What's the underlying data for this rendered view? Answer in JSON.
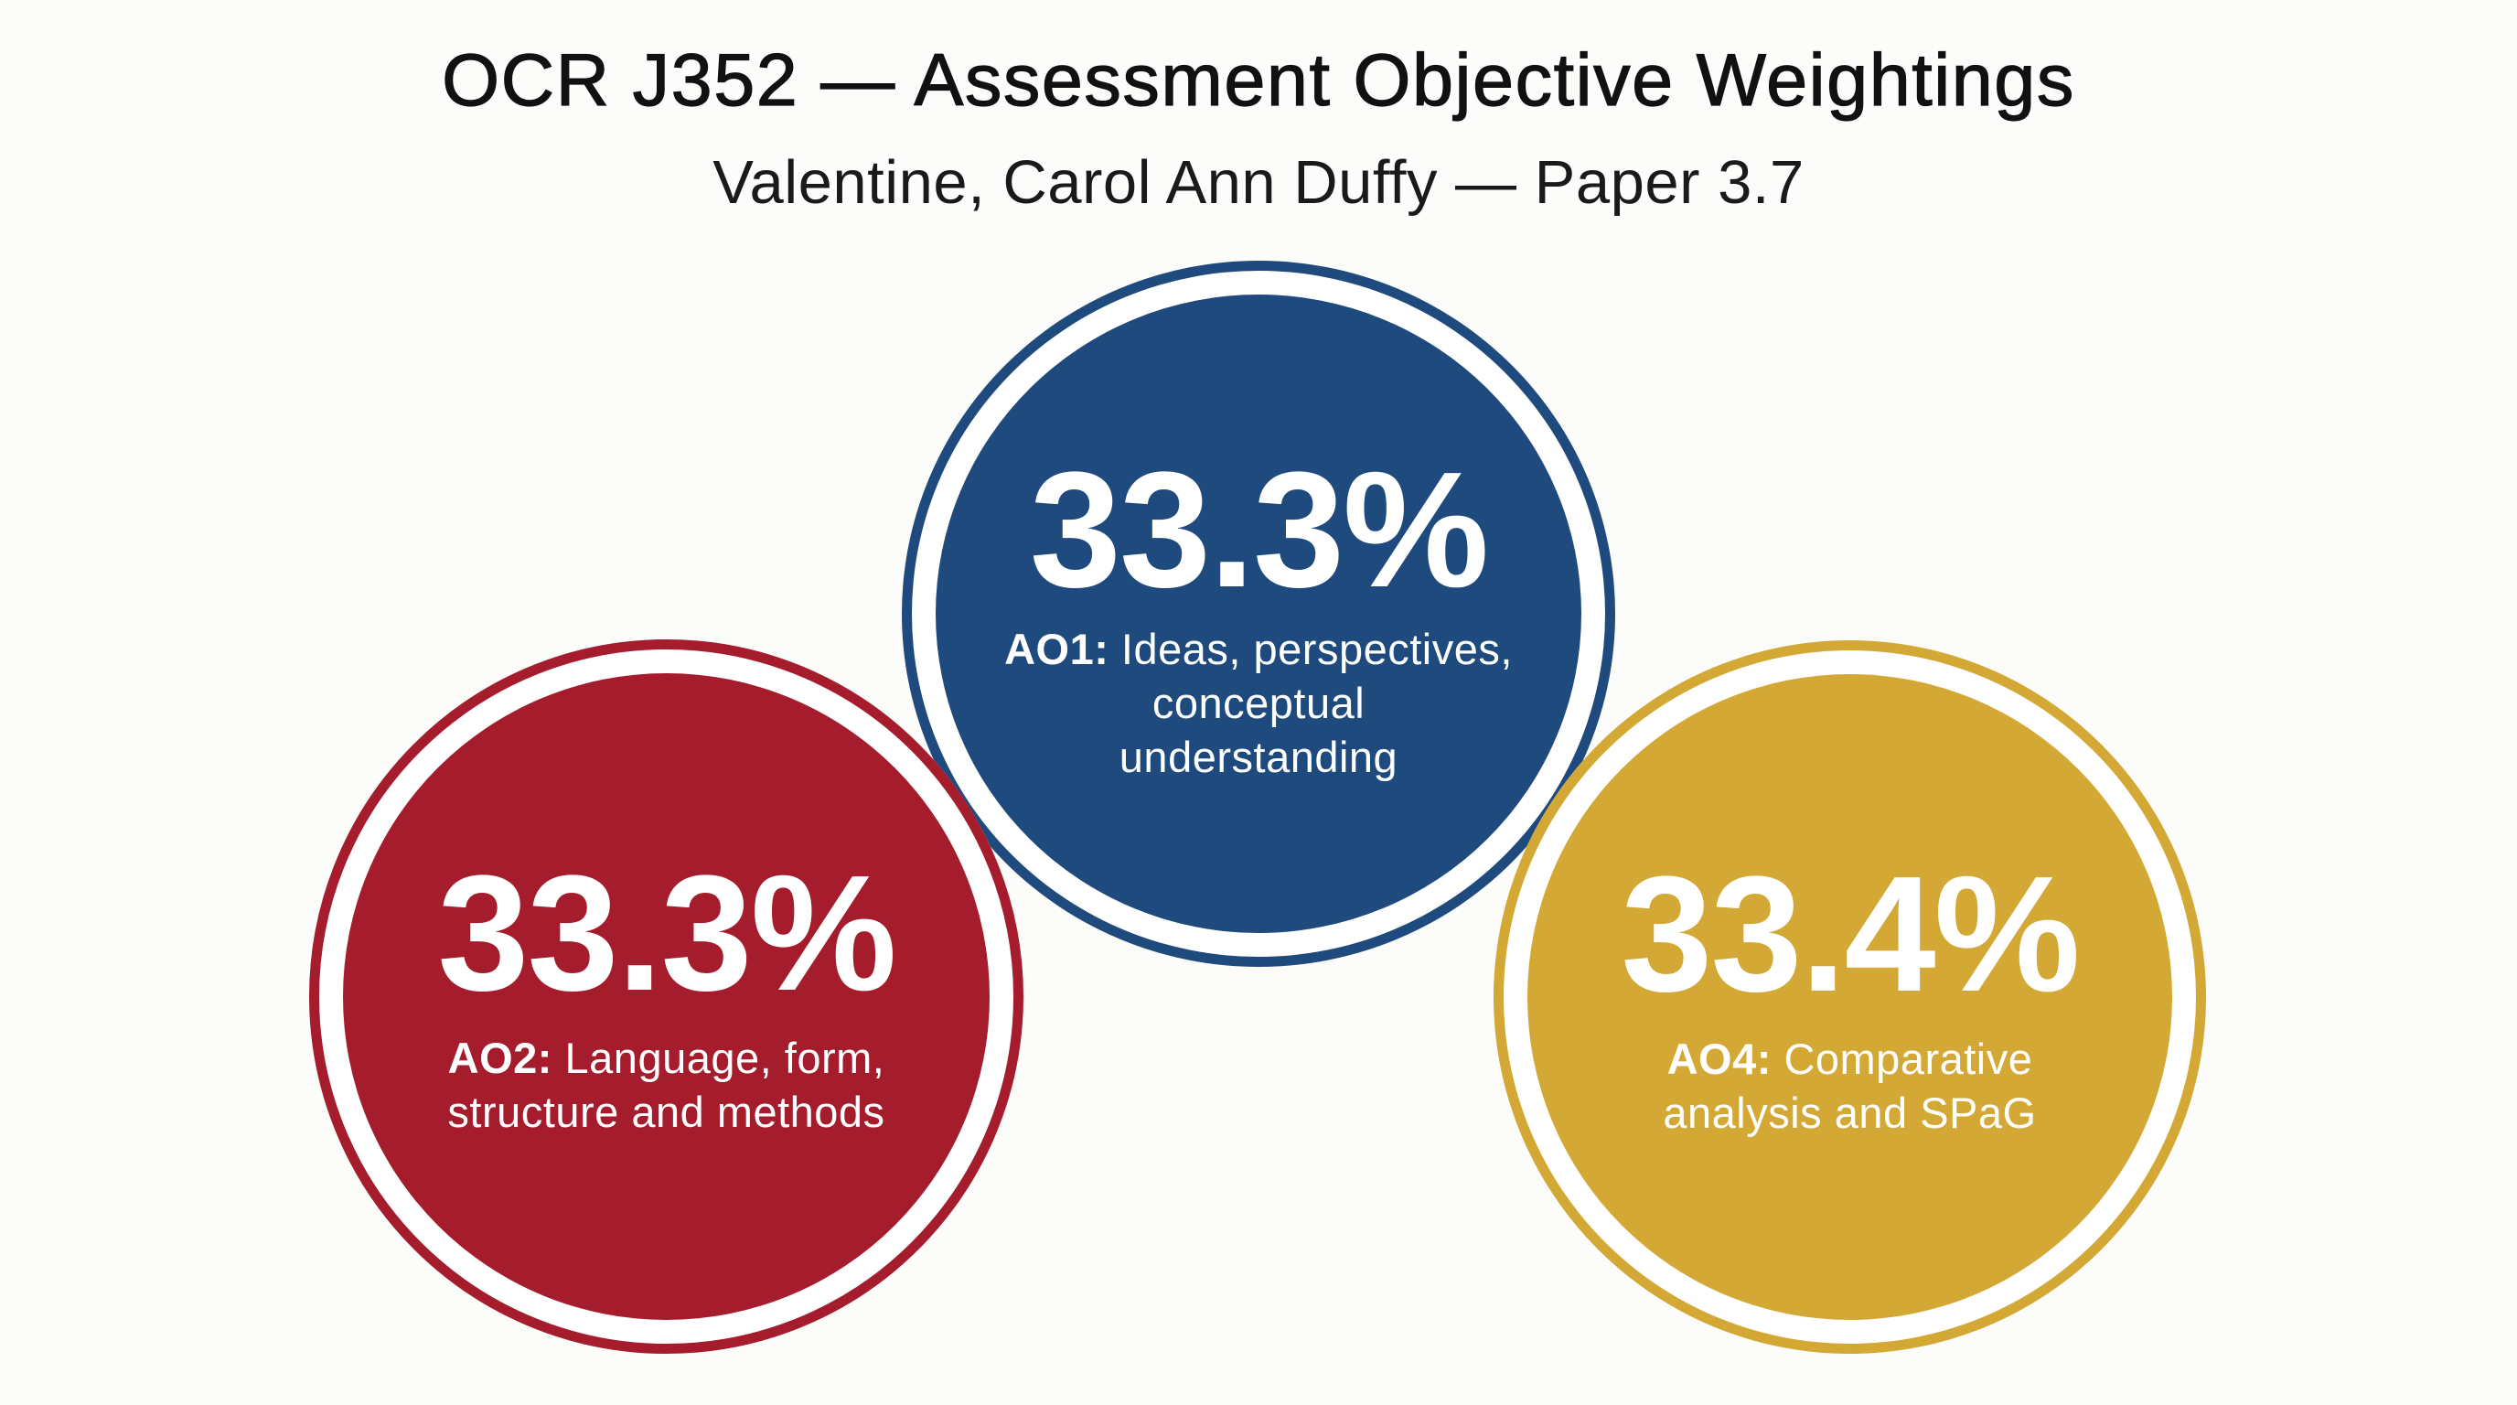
{
  "header": {
    "title": "OCR J352 — Assessment Objective Weightings",
    "subtitle": "Valentine, Carol Ann Duffy — Paper 3.7"
  },
  "colors": {
    "background": "#fcfcfa",
    "ao1": "#1f4a7e",
    "ao2": "#a51c2d",
    "ao4": "#d4a835",
    "text_on_disc": "#ffffff"
  },
  "discs": {
    "ao1": {
      "percent": "33.3%",
      "code": "AO1:",
      "line1": " Ideas, perspectives,",
      "line2": "conceptual",
      "line3": "understanding"
    },
    "ao2": {
      "percent": "33.3%",
      "code": "AO2:",
      "line1": " Language, form,",
      "line2": "structure and methods"
    },
    "ao4": {
      "percent": "33.4%",
      "code": "AO4:",
      "line1": " Comparative",
      "line2": "analysis and SPaG"
    }
  },
  "chart_data": {
    "type": "pie",
    "title": "OCR J352 — Assessment Objective Weightings",
    "subtitle": "Valentine, Carol Ann Duffy — Paper 3.7",
    "categories": [
      "AO1: Ideas, perspectives, conceptual understanding",
      "AO2: Language, form, structure and methods",
      "AO4: Comparative analysis and SPaG"
    ],
    "values": [
      33.3,
      33.3,
      33.4
    ],
    "unit": "%",
    "colors": [
      "#1f4a7e",
      "#a51c2d",
      "#d4a835"
    ],
    "layout": "three overlapping circles (AO1 top-center, AO2 bottom-left, AO4 bottom-right)",
    "legend": "none (labels inside circles)"
  }
}
